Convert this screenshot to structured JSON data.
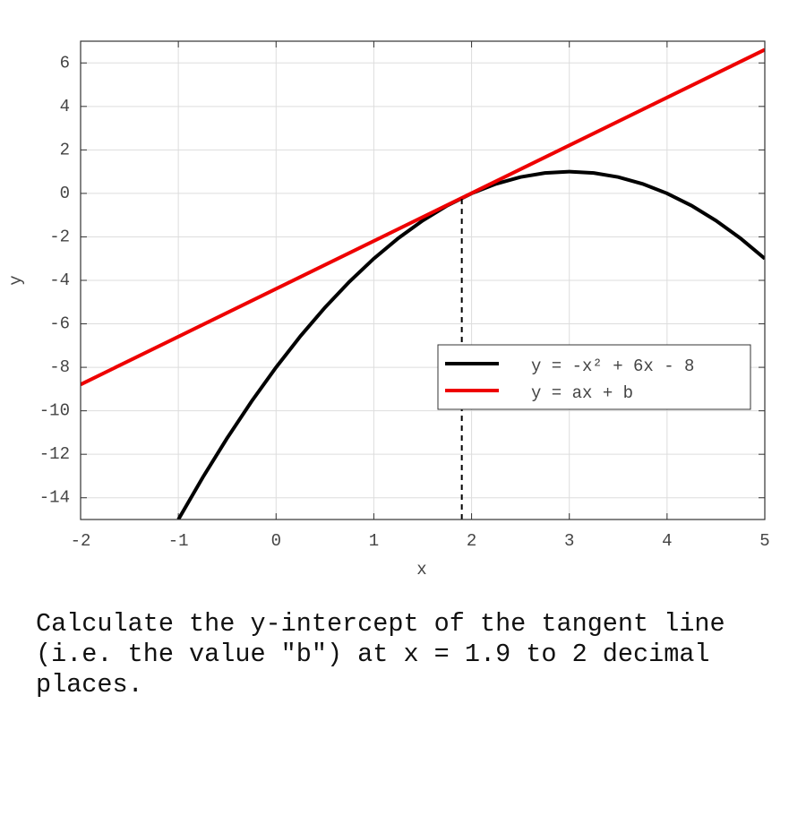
{
  "chart_data": {
    "type": "line",
    "xlabel": "x",
    "ylabel": "y",
    "xlim": [
      -2,
      5
    ],
    "ylim": [
      -15,
      7
    ],
    "xticks": [
      -2,
      -1,
      0,
      1,
      2,
      3,
      4,
      5
    ],
    "yticks": [
      -14,
      -12,
      -10,
      -8,
      -6,
      -4,
      -2,
      0,
      2,
      4,
      6
    ],
    "grid": true,
    "legend": "center right",
    "series": [
      {
        "name": "y = -x² + 6x - 8",
        "color": "#000000",
        "style": "solid",
        "x": [
          -1,
          -0.75,
          -0.5,
          -0.25,
          0,
          0.25,
          0.5,
          0.75,
          1,
          1.25,
          1.5,
          1.75,
          2,
          2.25,
          2.5,
          2.75,
          3,
          3.25,
          3.5,
          3.75,
          4,
          4.25,
          4.5,
          4.75,
          5
        ],
        "values": [
          -15,
          -13.0625,
          -11.25,
          -9.5625,
          -8,
          -6.5625,
          -5.25,
          -4.0625,
          -3,
          -2.0625,
          -1.25,
          -0.5625,
          0,
          0.4375,
          0.75,
          0.9375,
          1,
          0.9375,
          0.75,
          0.4375,
          0,
          -0.5625,
          -1.25,
          -2.0625,
          -3
        ]
      },
      {
        "name": "y = ax + b",
        "color": "#ee0000",
        "style": "solid",
        "x": [
          -2,
          5
        ],
        "values": [
          -8.79,
          6.61
        ]
      },
      {
        "color": "#000000",
        "style": "dashed",
        "x": [
          1.9,
          1.9
        ],
        "values": [
          -15,
          -0.21
        ]
      }
    ]
  },
  "question": "Calculate the y-intercept of the tangent line (i.e. the value \"b\") at x = 1.9 to 2 decimal places."
}
